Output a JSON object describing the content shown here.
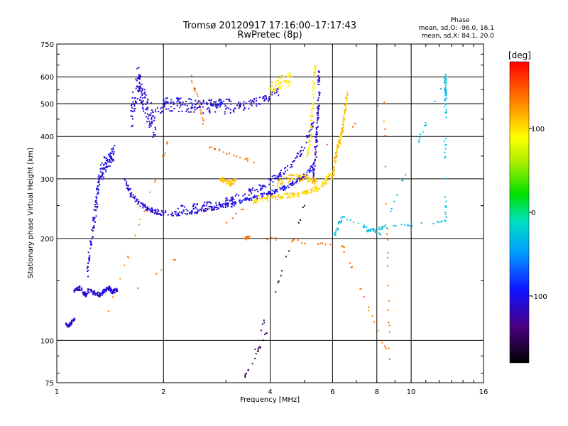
{
  "chart_data": {
    "type": "scatter",
    "title": "Tromsø 20120917 17:16:00–17:17:43",
    "subtitle": "RwPretec (8p)",
    "xlabel": "Frequency [MHz]",
    "ylabel": "Stationary phase Virtual Height [km]",
    "x_scale": "log",
    "y_scale": "log",
    "xlim": [
      1,
      16
    ],
    "ylim": [
      75,
      750
    ],
    "x_ticks": [
      1,
      2,
      4,
      6,
      8,
      10,
      16
    ],
    "y_ticks": [
      75,
      100,
      200,
      300,
      400,
      500,
      600,
      750
    ],
    "grid": true,
    "stats": {
      "header": "Phase",
      "line_o": "mean, sd,O: -96.0, 16.1",
      "line_x": "mean, sd,X:  84.1, 20.0"
    },
    "colorbar": {
      "unit": "[deg]",
      "ticks": [
        "100",
        "0",
        "-100"
      ],
      "range": [
        -180,
        180
      ],
      "tick_values": [
        100,
        0,
        -100
      ]
    },
    "traces": [
      {
        "name": "",
        "x": [
          1.06,
          1.08,
          1.1,
          1.12
        ],
        "y": [
          112,
          110,
          113,
          116
        ],
        "phase": -110,
        "spread": 2
      },
      {
        "name": "",
        "x": [
          1.12,
          1.16,
          1.2,
          1.24,
          1.28,
          1.32,
          1.36,
          1.4,
          1.44,
          1.48
        ],
        "y": [
          140,
          143,
          136,
          141,
          138,
          136,
          140,
          143,
          139,
          141
        ],
        "phase": -110,
        "spread": 6
      },
      {
        "name": "",
        "x": [
          1.22,
          1.25,
          1.28,
          1.3,
          1.32,
          1.35,
          1.38,
          1.42,
          1.45
        ],
        "y": [
          160,
          195,
          230,
          270,
          300,
          320,
          340,
          345,
          360
        ],
        "phase": -105,
        "spread": 22
      },
      {
        "name": "",
        "x": [
          1.62,
          1.66,
          1.7,
          1.72,
          1.75,
          1.8,
          1.85,
          1.9
        ],
        "y": [
          460,
          520,
          600,
          560,
          520,
          480,
          450,
          420
        ],
        "phase": -110,
        "spread": 38
      },
      {
        "name": "",
        "x": [
          1.55,
          1.62,
          1.7,
          1.8,
          1.9,
          2.0,
          2.2,
          2.4,
          2.6,
          2.8,
          3.0,
          3.2
        ],
        "y": [
          300,
          270,
          255,
          245,
          240,
          237,
          237,
          240,
          243,
          247,
          250,
          253
        ],
        "phase": -110,
        "spread": 7
      },
      {
        "name": "",
        "x": [
          3.2,
          3.5,
          3.8,
          4.1,
          4.4,
          4.7,
          5.0,
          5.3
        ],
        "y": [
          255,
          262,
          268,
          275,
          282,
          292,
          305,
          330
        ],
        "phase": -100,
        "spread": 6
      },
      {
        "name": "",
        "x": [
          1.9,
          2.1,
          2.4,
          2.7,
          3.0,
          3.3,
          3.6,
          3.9,
          4.2
        ],
        "y": [
          480,
          490,
          488,
          480,
          482,
          490,
          505,
          520,
          545
        ],
        "phase": -110,
        "spread": 14
      },
      {
        "name": "",
        "x": [
          2.0,
          2.2,
          2.5,
          2.8,
          3.1
        ],
        "y": [
          510,
          510,
          505,
          505,
          508
        ],
        "phase": -100,
        "spread": 8
      },
      {
        "name": "",
        "x": [
          4.0,
          4.2,
          4.4,
          4.6
        ],
        "y": [
          555,
          570,
          585,
          600
        ],
        "phase": 100,
        "spread": 20
      },
      {
        "name": "",
        "x": [
          2.2,
          2.6,
          3.0,
          3.4,
          3.8,
          4.2,
          4.6,
          5.0,
          5.3
        ],
        "y": [
          245,
          250,
          258,
          270,
          285,
          305,
          330,
          370,
          440
        ],
        "phase": -105,
        "spread": 9
      },
      {
        "name": "",
        "x": [
          5.3,
          5.35,
          5.4,
          5.45,
          5.48,
          5.5
        ],
        "y": [
          300,
          340,
          390,
          450,
          520,
          620
        ],
        "phase": -110,
        "spread": 10
      },
      {
        "name": "",
        "x": [
          5.1,
          5.2,
          5.25,
          5.3,
          5.35
        ],
        "y": [
          350,
          400,
          470,
          560,
          640
        ],
        "phase": 95,
        "spread": 12
      },
      {
        "name": "",
        "x": [
          2.9,
          3.0,
          3.1,
          3.2
        ],
        "y": [
          300,
          295,
          290,
          298
        ],
        "phase": 110,
        "spread": 6
      },
      {
        "name": "",
        "x": [
          3.6,
          3.9,
          4.2,
          4.5,
          4.8,
          5.1,
          5.4,
          5.7,
          5.9
        ],
        "y": [
          258,
          262,
          265,
          268,
          270,
          274,
          280,
          292,
          310
        ],
        "phase": 105,
        "spread": 7
      },
      {
        "name": "",
        "x": [
          4.2,
          4.5,
          4.8,
          5.1,
          5.4
        ],
        "y": [
          290,
          300,
          305,
          300,
          295
        ],
        "phase": 112,
        "spread": 10
      },
      {
        "name": "",
        "x": [
          6.0,
          6.1,
          6.2,
          6.3,
          6.4,
          6.5,
          6.6
        ],
        "y": [
          300,
          340,
          370,
          390,
          420,
          470,
          540
        ],
        "phase": 110,
        "spread": 8
      },
      {
        "name": "",
        "x": [
          6.1,
          6.4,
          8.2,
          12.5,
          12.5,
          12.5,
          12.5,
          8.3,
          7.5
        ],
        "y": [
          205,
          232,
          205,
          610,
          545,
          470,
          225,
          215,
          210
        ],
        "phase": -30,
        "spread": 4
      },
      {
        "name": "",
        "x": [
          3.4,
          3.5,
          6.4,
          8.7,
          8.4,
          1.4,
          2.4,
          2.7,
          3.6
        ],
        "y": [
          200,
          203,
          190,
          88,
          505,
          122,
          605,
          372,
          335
        ],
        "phase": 140,
        "spread": 4
      },
      {
        "name": "",
        "x": [
          3.9,
          3.4,
          5.0
        ],
        "y": [
          105,
          78,
          250
        ],
        "phase": -150,
        "spread": 2
      }
    ]
  }
}
